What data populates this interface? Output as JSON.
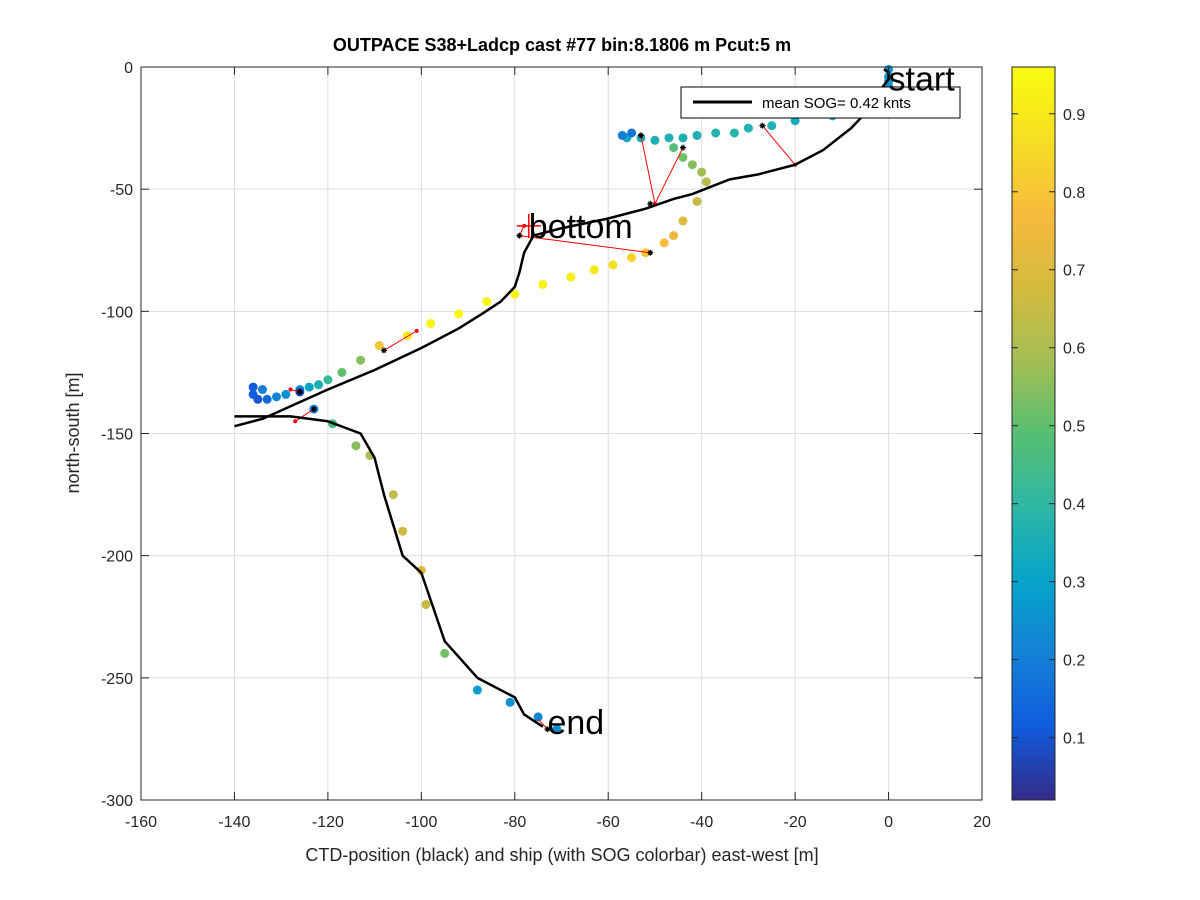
{
  "chart_data": {
    "type": "scatter",
    "title": "OUTPACE S38+Ladcp cast #77 bin:8.1806 m  Pcut:5 m",
    "xlabel": "CTD-position (black) and ship (with SOG colorbar) east-west [m]",
    "ylabel": "north-south [m]",
    "xlim": [
      -160,
      20
    ],
    "ylim": [
      -300,
      0
    ],
    "xticks": [
      -160,
      -140,
      -120,
      -100,
      -80,
      -60,
      -40,
      -20,
      0,
      20
    ],
    "yticks": [
      -300,
      -250,
      -200,
      -150,
      -100,
      -50,
      0
    ],
    "grid": true,
    "legend": {
      "label": "mean SOG=  0.42 knts",
      "placement": "top-right"
    },
    "colorbar": {
      "min": 0.02,
      "max": 0.96,
      "ticks": [
        0.1,
        0.2,
        0.3,
        0.4,
        0.5,
        0.6,
        0.7,
        0.8,
        0.9
      ],
      "colormap": "parula"
    },
    "annotations": [
      {
        "text": "start",
        "x": 0,
        "y": -3
      },
      {
        "text": "bottom",
        "x": -77,
        "y": -65
      },
      {
        "text": "end",
        "x": -73,
        "y": -268
      }
    ],
    "ctd_track": {
      "name": "CTD-position",
      "color": "#000000",
      "x": [
        -140,
        -134,
        -120,
        -110,
        -100,
        -92,
        -87,
        -83,
        -80,
        -79,
        -78,
        -76,
        -70,
        -60,
        -52,
        -46,
        -42,
        -38,
        -34,
        -28,
        -20,
        -14,
        -8,
        -4,
        -2,
        0,
        0,
        -1
      ],
      "y": [
        -147,
        -144,
        -132,
        -124,
        -115,
        -107,
        -101,
        -96,
        -90,
        -84,
        -76,
        -69,
        -66,
        -62,
        -58,
        -54,
        -52,
        -49,
        -46,
        -44,
        -40,
        -34,
        -25,
        -17,
        -10,
        -5,
        -2,
        -1
      ]
    },
    "ctd_track_return": {
      "x": [
        -140,
        -128,
        -120,
        -113,
        -110,
        -108,
        -104,
        -100,
        -95,
        -88,
        -80,
        -78,
        -74
      ],
      "y": [
        -143,
        -143,
        -145,
        -150,
        -160,
        -175,
        -200,
        -207,
        -235,
        -250,
        -258,
        -265,
        -270
      ]
    },
    "ship_points": {
      "name": "ship SOG",
      "x": [
        0,
        0,
        0,
        0,
        -12,
        -20,
        -25,
        -30,
        -33,
        -37,
        -41,
        -44,
        -47,
        -50,
        -53,
        -56,
        -57,
        -55,
        -46,
        -44,
        -42,
        -40,
        -39,
        -41,
        -44,
        -46,
        -48,
        -52,
        -55,
        -59,
        -63,
        -68,
        -74,
        -80,
        -86,
        -92,
        -98,
        -103,
        -109,
        -113,
        -117,
        -120,
        -122,
        -124,
        -126,
        -129,
        -131,
        -133,
        -135,
        -134,
        -136,
        -136,
        -126,
        -123,
        -119,
        -114,
        -111,
        -106,
        -104,
        -100,
        -99,
        -95,
        -88,
        -81,
        -75,
        -71
      ],
      "y": [
        -1,
        -4,
        -6,
        -8,
        -20,
        -22,
        -24,
        -25,
        -27,
        -27,
        -28,
        -29,
        -29,
        -30,
        -29,
        -29,
        -28,
        -27,
        -33,
        -37,
        -40,
        -43,
        -47,
        -55,
        -63,
        -69,
        -72,
        -76,
        -78,
        -81,
        -83,
        -86,
        -89,
        -93,
        -96,
        -101,
        -105,
        -110,
        -114,
        -120,
        -125,
        -128,
        -130,
        -131,
        -132,
        -134,
        -135,
        -136,
        -136,
        -132,
        -131,
        -134,
        -133,
        -140,
        -146,
        -155,
        -159,
        -175,
        -190,
        -206,
        -220,
        -240,
        -255,
        -260,
        -266,
        -271
      ],
      "sog": [
        0.25,
        0.27,
        0.28,
        0.26,
        0.32,
        0.34,
        0.36,
        0.37,
        0.38,
        0.37,
        0.36,
        0.35,
        0.36,
        0.36,
        0.35,
        0.33,
        0.2,
        0.18,
        0.48,
        0.52,
        0.55,
        0.58,
        0.62,
        0.65,
        0.7,
        0.74,
        0.78,
        0.8,
        0.84,
        0.87,
        0.9,
        0.92,
        0.93,
        0.94,
        0.94,
        0.94,
        0.93,
        0.9,
        0.8,
        0.55,
        0.5,
        0.42,
        0.35,
        0.3,
        0.27,
        0.25,
        0.22,
        0.15,
        0.1,
        0.2,
        0.12,
        0.12,
        0.08,
        0.2,
        0.45,
        0.55,
        0.6,
        0.63,
        0.67,
        0.7,
        0.65,
        0.52,
        0.28,
        0.25,
        0.22,
        0.24
      ]
    },
    "bin_markers": {
      "x": [
        -27,
        -44,
        -53,
        -51,
        -108,
        -126,
        -123,
        -79,
        -51,
        -73
      ],
      "y": [
        -24,
        -33,
        -28,
        -76,
        -116,
        -133,
        -140,
        -69,
        -56,
        -271
      ]
    },
    "red_connectors": {
      "color": "#ff0000",
      "segments": [
        [
          -27,
          -24,
          -20,
          -40
        ],
        [
          -44,
          -33,
          -50,
          -56
        ],
        [
          -53,
          -28,
          -50,
          -56
        ],
        [
          -51,
          -76,
          -79,
          -69
        ],
        [
          -79,
          -69,
          -78,
          -65
        ],
        [
          -108,
          -116,
          -101,
          -108
        ],
        [
          -126,
          -133,
          -128,
          -132
        ],
        [
          -123,
          -140,
          -127,
          -145
        ],
        [
          -75,
          -267,
          -73,
          -271
        ]
      ]
    }
  }
}
